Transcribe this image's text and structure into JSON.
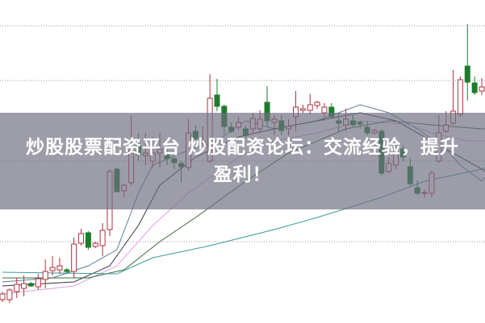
{
  "headline": {
    "line1": "炒股股票配资平台 炒股配资论坛：交流经验，提升",
    "line2": "盈利！"
  },
  "colors": {
    "up": "#b03040",
    "down": "#1f7a2e",
    "grid": "#999999",
    "banner": "#6e6e80"
  },
  "chart_data": {
    "type": "candlestick",
    "title": "",
    "grid": true,
    "ylim": [
      0,
      100
    ],
    "candles_ohlc": [
      [
        7,
        9.5,
        6.25,
        8.75
      ],
      [
        7,
        10.5,
        6,
        10
      ],
      [
        9.5,
        13.75,
        7.5,
        11.75
      ],
      [
        10.5,
        14.5,
        8,
        12
      ],
      [
        12,
        12.5,
        11,
        11.25
      ],
      [
        11,
        15,
        10,
        13.5
      ],
      [
        13.25,
        19.5,
        10.5,
        15.75
      ],
      [
        16,
        20.5,
        14.5,
        17
      ],
      [
        16.25,
        20,
        15,
        17.5
      ],
      [
        16.25,
        16.75,
        15,
        15.75
      ],
      [
        15.75,
        26.25,
        13.75,
        24.25
      ],
      [
        24.5,
        29,
        23.75,
        27.5
      ],
      [
        27.75,
        28.25,
        22.5,
        23.25
      ],
      [
        23.5,
        25,
        23,
        24.5
      ],
      [
        23.75,
        30.75,
        20.5,
        28.5
      ],
      [
        28.75,
        47.5,
        26.75,
        46.75
      ],
      [
        47.5,
        48,
        40.5,
        40.5
      ],
      [
        40.75,
        43,
        38.75,
        42.5
      ],
      [
        43.25,
        64.25,
        42.5,
        53.25
      ],
      [
        55,
        58.75,
        50,
        52
      ],
      [
        51.75,
        58.75,
        48.75,
        52.5
      ],
      [
        50,
        57.5,
        48,
        52.5
      ],
      [
        52.5,
        58.75,
        48,
        53.75
      ],
      [
        52.5,
        53.75,
        48.75,
        50.75
      ],
      [
        50.75,
        51.25,
        47.5,
        49.5
      ],
      [
        49.25,
        50,
        43.25,
        48.25
      ],
      [
        48,
        63,
        47,
        58.75
      ],
      [
        59.25,
        61.25,
        55,
        57
      ],
      [
        55.5,
        60.75,
        55,
        56.25
      ],
      [
        50,
        77,
        49.5,
        69.5
      ],
      [
        70.5,
        75.5,
        65.5,
        67
      ],
      [
        67,
        67.5,
        58.25,
        60.75
      ],
      [
        60.5,
        62,
        58.75,
        59.25
      ],
      [
        60.5,
        63.75,
        59.5,
        62
      ],
      [
        60,
        61,
        57,
        58
      ],
      [
        60,
        65,
        58.75,
        63.25
      ],
      [
        60,
        65.75,
        58.75,
        63
      ],
      [
        68.25,
        73.25,
        60.5,
        62.5
      ],
      [
        62,
        64.25,
        58,
        63
      ],
      [
        62.5,
        64.25,
        58,
        59.5
      ],
      [
        60,
        63,
        58,
        60.75
      ],
      [
        63.75,
        71.75,
        59.25,
        66.75
      ],
      [
        65.75,
        67.5,
        65,
        66.25
      ],
      [
        65.75,
        70.75,
        64.5,
        67.5
      ],
      [
        67.25,
        68.75,
        66.25,
        68.25
      ],
      [
        65,
        68,
        62.5,
        66.75
      ],
      [
        66.75,
        68,
        63,
        63.75
      ],
      [
        62.5,
        65,
        59.25,
        61.75
      ],
      [
        61.25,
        66.25,
        59.25,
        63
      ],
      [
        62.5,
        64.25,
        60.75,
        61.25
      ],
      [
        62,
        62.5,
        60,
        61.5
      ],
      [
        60.5,
        62.5,
        58,
        58.75
      ],
      [
        58.75,
        60,
        58.25,
        59.5
      ],
      [
        59.25,
        60,
        45.5,
        46.25
      ],
      [
        46.75,
        51.25,
        46.25,
        49.25
      ],
      [
        48.75,
        55,
        47.5,
        52.5
      ],
      [
        53.75,
        55,
        50,
        51.25
      ],
      [
        48.25,
        50.75,
        42,
        43
      ],
      [
        41.75,
        44,
        39.5,
        40
      ],
      [
        40,
        41.25,
        38.75,
        40.25
      ],
      [
        40,
        47,
        38.75,
        46.25
      ],
      [
        50,
        64.25,
        49.5,
        58.75
      ],
      [
        59.25,
        65.5,
        58.75,
        61.25
      ],
      [
        61.75,
        78.25,
        61.25,
        65.5
      ],
      [
        64.5,
        76.25,
        63.75,
        75.25
      ],
      [
        79.5,
        92.5,
        68.75,
        74.5
      ],
      [
        74.25,
        76.25,
        70.5,
        71.25
      ],
      [
        71.75,
        75.75,
        70.5,
        73
      ]
    ],
    "moving_averages": [
      {
        "color": "#5a7f99",
        "points": [
          [
            0,
            12.5
          ],
          [
            7,
            13.75
          ],
          [
            12,
            17.5
          ],
          [
            16,
            22.5
          ],
          [
            19,
            40
          ],
          [
            21,
            48.75
          ],
          [
            25,
            52.5
          ],
          [
            30,
            56.25
          ],
          [
            34,
            62.5
          ],
          [
            38,
            60
          ],
          [
            44,
            62.5
          ],
          [
            50,
            67.5
          ],
          [
            54,
            65
          ],
          [
            58,
            60
          ],
          [
            62,
            53.75
          ],
          [
            64,
            48.75
          ],
          [
            67,
            43.75
          ],
          [
            69,
            48.75
          ],
          [
            72,
            62.5
          ],
          [
            75,
            71.25
          ]
        ]
      },
      {
        "color": "#333344",
        "points": [
          [
            0,
            11.25
          ],
          [
            10,
            12.5
          ],
          [
            15,
            17.5
          ],
          [
            19,
            30
          ],
          [
            22,
            42.5
          ],
          [
            27,
            51.25
          ],
          [
            33,
            57.5
          ],
          [
            38,
            60
          ],
          [
            44,
            62.5
          ],
          [
            50,
            65
          ],
          [
            55,
            62.5
          ],
          [
            60,
            56.25
          ],
          [
            64,
            51.25
          ],
          [
            68,
            46.25
          ],
          [
            72,
            53.75
          ],
          [
            75,
            61.25
          ]
        ]
      },
      {
        "color": "#e0a0e0",
        "points": [
          [
            0,
            8.75
          ],
          [
            10,
            11.25
          ],
          [
            16,
            17.5
          ],
          [
            21,
            30
          ],
          [
            26,
            40
          ],
          [
            33,
            51.25
          ],
          [
            38,
            56.25
          ],
          [
            44,
            58.75
          ],
          [
            50,
            62.5
          ],
          [
            57,
            61.25
          ],
          [
            60,
            58.75
          ],
          [
            65,
            56.25
          ],
          [
            70,
            56.25
          ],
          [
            75,
            58.75
          ]
        ]
      },
      {
        "color": "#3a6a3a",
        "points": [
          [
            0,
            13.75
          ],
          [
            12,
            13.75
          ],
          [
            17,
            16.25
          ],
          [
            22,
            25
          ],
          [
            27,
            32.5
          ],
          [
            34,
            43.75
          ],
          [
            40,
            52.5
          ],
          [
            48,
            60
          ],
          [
            54,
            62.5
          ],
          [
            60,
            61.25
          ],
          [
            67,
            60
          ],
          [
            72,
            60
          ],
          [
            75,
            63.75
          ]
        ]
      },
      {
        "color": "#3a9a9a",
        "points": [
          [
            0,
            15.5
          ],
          [
            16,
            15
          ],
          [
            21,
            20
          ],
          [
            29,
            23.75
          ],
          [
            38,
            28.75
          ],
          [
            44,
            32.5
          ],
          [
            53,
            38.75
          ],
          [
            59,
            43.75
          ],
          [
            67,
            47.5
          ],
          [
            72,
            51.25
          ],
          [
            75,
            56.25
          ]
        ]
      }
    ],
    "gridlines": [
      25,
      50,
      75,
      92
    ]
  }
}
